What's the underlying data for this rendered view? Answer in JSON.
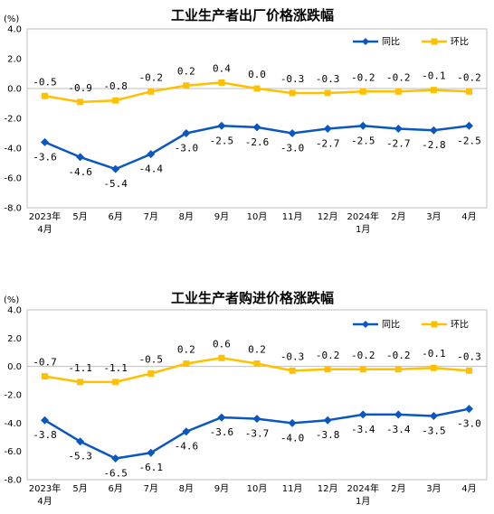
{
  "chart_data": [
    {
      "type": "line",
      "title": "工业生产者出厂价格涨跌幅",
      "unit": "(%)",
      "categories": [
        [
          "2023年",
          "4月"
        ],
        [
          "5月"
        ],
        [
          "6月"
        ],
        [
          "7月"
        ],
        [
          "8月"
        ],
        [
          "9月"
        ],
        [
          "10月"
        ],
        [
          "11月"
        ],
        [
          "12月"
        ],
        [
          "2024年",
          "1月"
        ],
        [
          "2月"
        ],
        [
          "3月"
        ],
        [
          "4月"
        ]
      ],
      "ylim": [
        -8.0,
        4.0
      ],
      "yticks": [
        "4.0",
        "2.0",
        "0.0",
        "-2.0",
        "-4.0",
        "-6.0",
        "-8.0"
      ],
      "legend": "top-right",
      "series": [
        {
          "name": "同比",
          "color": "#0a57c2",
          "values": [
            -3.6,
            -4.6,
            -5.4,
            -4.4,
            -3.0,
            -2.5,
            -2.6,
            -3.0,
            -2.7,
            -2.5,
            -2.7,
            -2.8,
            -2.5
          ],
          "labels": [
            "-3.6",
            "-4.6",
            "-5.4",
            "-4.4",
            "-3.0",
            "-2.5",
            "-2.6",
            "-3.0",
            "-2.7",
            "-2.5",
            "-2.7",
            "-2.8",
            "-2.5"
          ]
        },
        {
          "name": "环比",
          "color": "#ffc000",
          "values": [
            -0.5,
            -0.9,
            -0.8,
            -0.2,
            0.2,
            0.4,
            0.0,
            -0.3,
            -0.3,
            -0.2,
            -0.2,
            -0.1,
            -0.2
          ],
          "labels": [
            "-0.5",
            "-0.9",
            "-0.8",
            "-0.2",
            "0.2",
            "0.4",
            "0.0",
            "-0.3",
            "-0.3",
            "-0.2",
            "-0.2",
            "-0.1",
            "-0.2"
          ]
        }
      ]
    },
    {
      "type": "line",
      "title": "工业生产者购进价格涨跌幅",
      "unit": "(%)",
      "categories": [
        [
          "2023年",
          "4月"
        ],
        [
          "5月"
        ],
        [
          "6月"
        ],
        [
          "7月"
        ],
        [
          "8月"
        ],
        [
          "9月"
        ],
        [
          "10月"
        ],
        [
          "11月"
        ],
        [
          "12月"
        ],
        [
          "2024年",
          "1月"
        ],
        [
          "2月"
        ],
        [
          "3月"
        ],
        [
          "4月"
        ]
      ],
      "ylim": [
        -8.0,
        4.0
      ],
      "yticks": [
        "4.0",
        "2.0",
        "0.0",
        "-2.0",
        "-4.0",
        "-6.0",
        "-8.0"
      ],
      "legend": "top-right",
      "series": [
        {
          "name": "同比",
          "color": "#0a57c2",
          "values": [
            -3.8,
            -5.3,
            -6.5,
            -6.1,
            -4.6,
            -3.6,
            -3.7,
            -4.0,
            -3.8,
            -3.4,
            -3.4,
            -3.5,
            -3.0
          ],
          "labels": [
            "-3.8",
            "-5.3",
            "-6.5",
            "-6.1",
            "-4.6",
            "-3.6",
            "-3.7",
            "-4.0",
            "-3.8",
            "-3.4",
            "-3.4",
            "-3.5",
            "-3.0"
          ]
        },
        {
          "name": "环比",
          "color": "#ffc000",
          "values": [
            -0.7,
            -1.1,
            -1.1,
            -0.5,
            0.2,
            0.6,
            0.2,
            -0.3,
            -0.2,
            -0.2,
            -0.2,
            -0.1,
            -0.3
          ],
          "labels": [
            "-0.7",
            "-1.1",
            "-1.1",
            "-0.5",
            "0.2",
            "0.6",
            "0.2",
            "-0.3",
            "-0.2",
            "-0.2",
            "-0.2",
            "-0.1",
            "-0.3"
          ]
        }
      ]
    }
  ]
}
